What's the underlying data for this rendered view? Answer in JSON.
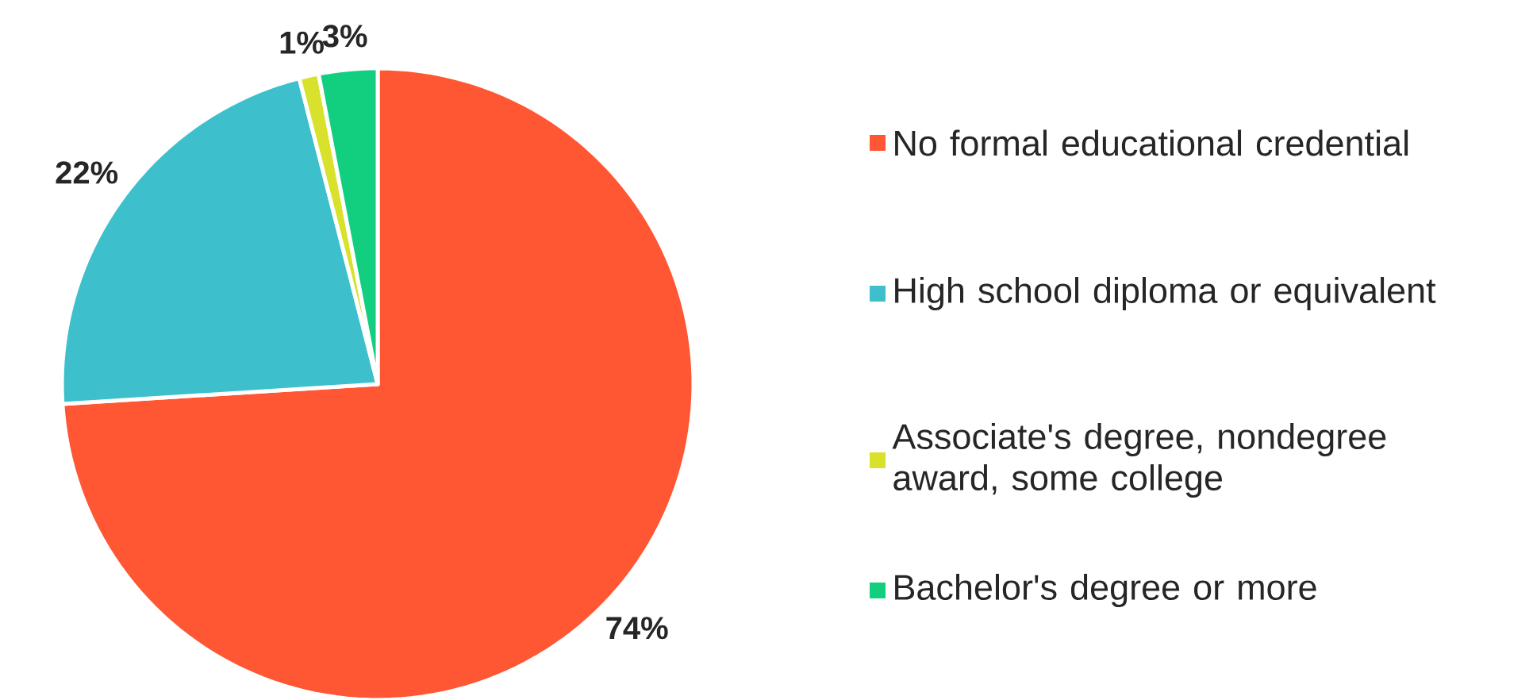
{
  "chart_data": {
    "type": "pie",
    "categories": [
      "No formal educational credential",
      "High school diploma or equivalent",
      "Associate's degree, nondegree award, some college",
      "Bachelor's degree or more"
    ],
    "values": [
      74,
      22,
      1,
      3
    ],
    "colors": [
      "#ff5733",
      "#3dc0cb",
      "#d8e22c",
      "#12cf7f"
    ],
    "value_labels": [
      "74%",
      "22%",
      "1%",
      "3%"
    ],
    "legend": "right"
  }
}
